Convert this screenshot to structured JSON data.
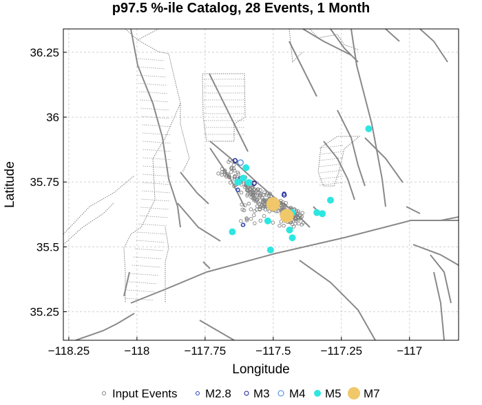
{
  "chart_data": {
    "type": "scatter",
    "title": "p97.5 %-ile Catalog, 28 Events, 1 Month",
    "xlabel": "Longitude",
    "ylabel": "Latitude",
    "xlim": [
      -118.27,
      -116.82
    ],
    "ylim": [
      35.14,
      36.34
    ],
    "xticks": [
      -118.25,
      -118,
      -117.75,
      -117.5,
      -117.25,
      -117
    ],
    "xtick_labels": [
      "−118.25",
      "−118",
      "−117.75",
      "−117.5",
      "−117.25",
      "−117"
    ],
    "yticks": [
      35.25,
      35.5,
      35.75,
      36,
      36.25
    ],
    "ytick_labels": [
      "35.25",
      "35.5",
      "35.75",
      "36",
      "36.25"
    ],
    "grid": true,
    "legend_position": "bottom",
    "legend": [
      "Input Events",
      "M2.8",
      "M3",
      "M4",
      "M5",
      "M7"
    ],
    "colors": {
      "input": "#808080",
      "m28": "#1f3fbf",
      "m3": "#1a1a8c",
      "m4": "#3a7fd5",
      "m5": "#2ee6e0",
      "m7": "#f0c86a",
      "fault": "#888888",
      "grid": "#d0d0d0"
    },
    "series": [
      {
        "name": "M5",
        "points": [
          [
            -117.15,
            35.955
          ],
          [
            -117.6,
            35.805
          ],
          [
            -117.61,
            35.765
          ],
          [
            -117.63,
            35.75
          ],
          [
            -117.59,
            35.748
          ],
          [
            -117.43,
            35.632
          ],
          [
            -117.34,
            35.632
          ],
          [
            -117.32,
            35.628
          ],
          [
            -117.52,
            35.6
          ],
          [
            -117.29,
            35.68
          ],
          [
            -117.44,
            35.565
          ],
          [
            -117.43,
            35.535
          ],
          [
            -117.65,
            35.558
          ],
          [
            -117.51,
            35.488
          ],
          [
            -117.45,
            35.612
          ]
        ]
      },
      {
        "name": "M7",
        "points": [
          [
            -117.5,
            35.665
          ],
          [
            -117.45,
            35.62
          ]
        ]
      },
      {
        "name": "M2.8",
        "points": [
          [
            -117.63,
            35.72
          ],
          [
            -117.61,
            35.585
          ],
          [
            -117.46,
            35.705
          ],
          [
            -117.62,
            35.765
          ]
        ]
      },
      {
        "name": "M3",
        "points": [
          [
            -117.64,
            35.832
          ],
          [
            -117.46,
            35.7
          ],
          [
            -117.57,
            35.745
          ]
        ]
      },
      {
        "name": "M4",
        "points": [
          [
            -117.62,
            35.825
          ]
        ]
      }
    ]
  }
}
